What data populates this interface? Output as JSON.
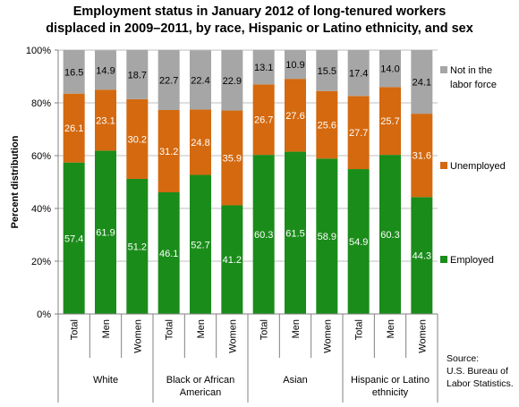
{
  "chart_data": {
    "type": "bar",
    "stacked": true,
    "title_lines": [
      "Employment status in January 2012 of long-tenured workers",
      "displaced in 2009–2011, by race, Hispanic or Latino ethnicity, and sex"
    ],
    "ylabel": "Percent distribution",
    "ylim": [
      0,
      100
    ],
    "y_ticks": [
      "0%",
      "20%",
      "40%",
      "60%",
      "80%",
      "100%"
    ],
    "grid": "horizontal",
    "legend_position": "right",
    "categories": [
      "Total",
      "Men",
      "Women",
      "Total",
      "Men",
      "Women",
      "Total",
      "Men",
      "Women",
      "Total",
      "Men",
      "Women"
    ],
    "groups": [
      {
        "label_lines": [
          "White"
        ],
        "count": 3
      },
      {
        "label_lines": [
          "Black or African",
          "American"
        ],
        "count": 3
      },
      {
        "label_lines": [
          "Asian"
        ],
        "count": 3
      },
      {
        "label_lines": [
          "Hispanic or Latino",
          "ethnicity"
        ],
        "count": 3
      }
    ],
    "series": [
      {
        "name": "Employed",
        "color": "#1a8c1a",
        "values": [
          57.4,
          61.9,
          51.2,
          46.1,
          52.7,
          41.2,
          60.3,
          61.5,
          58.9,
          54.9,
          60.3,
          44.3
        ]
      },
      {
        "name": "Unemployed",
        "color": "#d4690f",
        "values": [
          26.1,
          23.1,
          30.2,
          31.2,
          24.8,
          35.9,
          26.7,
          27.6,
          25.6,
          27.7,
          25.7,
          31.6
        ]
      },
      {
        "name": "Not in the labor force",
        "color": "#a6a6a6",
        "values": [
          16.5,
          14.9,
          18.7,
          22.7,
          22.4,
          22.9,
          13.1,
          10.9,
          15.5,
          17.4,
          14.0,
          24.1
        ]
      }
    ],
    "legend": [
      {
        "series": 2,
        "label_lines": [
          "Not in the",
          "labor force"
        ]
      },
      {
        "series": 1,
        "label_lines": [
          "Unemployed"
        ]
      },
      {
        "series": 0,
        "label_lines": [
          "Employed"
        ]
      }
    ]
  },
  "source_lines": [
    "Source:",
    "U.S. Bureau of",
    "Labor Statistics."
  ]
}
